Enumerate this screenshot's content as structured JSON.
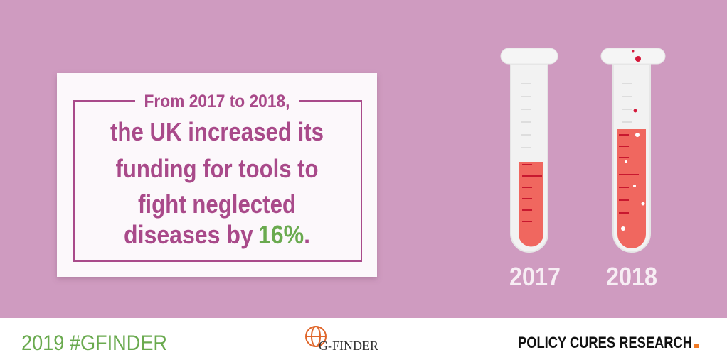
{
  "card": {
    "lead": "From 2017 to 2018,",
    "body_lines": [
      "the UK increased its",
      "funding for tools to",
      "fight neglected",
      "diseases by"
    ],
    "highlight": "16%",
    "end": "."
  },
  "tubes": {
    "labels": [
      "2017",
      "2018"
    ]
  },
  "footer": {
    "hashtag": "2019 #GFINDER",
    "logo": "G-FINDER",
    "brand": "POLICY CURES RESEARCH"
  }
}
